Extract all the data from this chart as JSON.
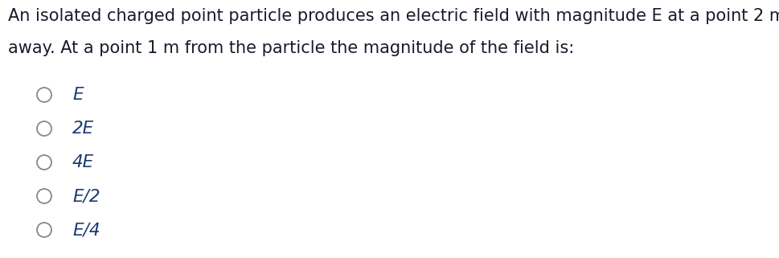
{
  "background_color": "#ffffff",
  "question_line1": "An isolated charged point particle produces an electric field with magnitude E at a point 2 m",
  "question_line2": "away. At a point 1 m from the particle the magnitude of the field is:",
  "options": [
    "E",
    "2E",
    "4E",
    "E/2",
    "E/4"
  ],
  "question_text_color": "#1a1a2e",
  "circle_color": "#888888",
  "option_text_color": "#1a3a6e",
  "font_size_question": 15.0,
  "font_size_options": 15.5,
  "fig_width": 9.7,
  "fig_height": 3.21,
  "dpi": 100
}
